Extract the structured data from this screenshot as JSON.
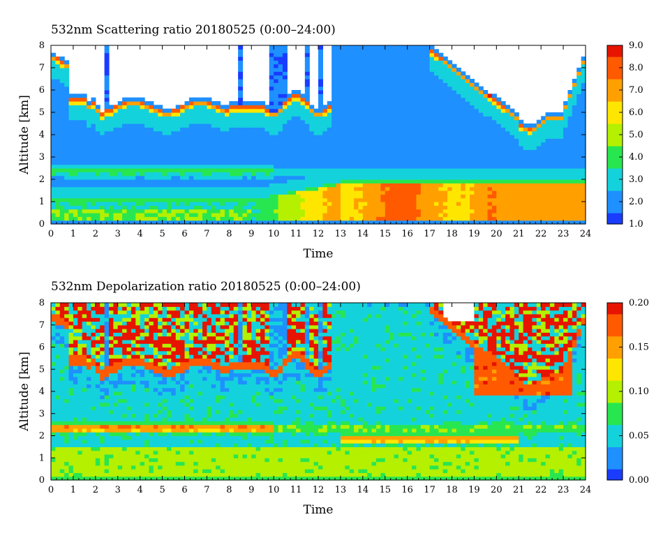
{
  "chart_data": [
    {
      "type": "heatmap",
      "title": "532nm Scattering ratio  20180525 (0:00–24:00)",
      "xlabel": "Time",
      "ylabel": "Altitude [km]",
      "x_ticks": [
        "0",
        "1",
        "2",
        "3",
        "4",
        "5",
        "6",
        "7",
        "8",
        "9",
        "10",
        "11",
        "12",
        "13",
        "14",
        "15",
        "16",
        "17",
        "18",
        "19",
        "20",
        "21",
        "22",
        "23",
        "24"
      ],
      "y_ticks": [
        "0",
        "1",
        "2",
        "3",
        "4",
        "5",
        "6",
        "7",
        "8"
      ],
      "xlim": [
        0,
        24
      ],
      "ylim": [
        0,
        8
      ],
      "colorbar": {
        "ticks": [
          "1.0",
          "2.0",
          "3.0",
          "4.0",
          "5.0",
          "6.0",
          "7.0",
          "8.0",
          "9.0"
        ],
        "range": [
          1.0,
          9.0
        ],
        "colors": [
          "#1a3cff",
          "#1e90ff",
          "#14d2dc",
          "#28e650",
          "#b4f000",
          "#ffe600",
          "#ffa000",
          "#ff5a00",
          "#e61400"
        ]
      },
      "variable": "scattering_ratio"
    },
    {
      "type": "heatmap",
      "title": "532nm Depolarization ratio  20180525 (0:00–24:00)",
      "xlabel": "Time",
      "ylabel": "Altitude [km]",
      "x_ticks": [
        "0",
        "1",
        "2",
        "3",
        "4",
        "5",
        "6",
        "7",
        "8",
        "9",
        "10",
        "11",
        "12",
        "13",
        "14",
        "15",
        "16",
        "17",
        "18",
        "19",
        "20",
        "21",
        "22",
        "23",
        "24"
      ],
      "y_ticks": [
        "0",
        "1",
        "2",
        "3",
        "4",
        "5",
        "6",
        "7",
        "8"
      ],
      "xlim": [
        0,
        24
      ],
      "ylim": [
        0,
        8
      ],
      "colorbar": {
        "ticks": [
          "0.00",
          "0.05",
          "0.10",
          "0.15",
          "0.20"
        ],
        "range": [
          0.0,
          0.2
        ],
        "colors": [
          "#1a3cff",
          "#1e90ff",
          "#14d2dc",
          "#28e650",
          "#b4f000",
          "#ffe600",
          "#ffa000",
          "#ff5a00",
          "#e61400"
        ]
      },
      "variable": "depolarization_ratio"
    }
  ]
}
